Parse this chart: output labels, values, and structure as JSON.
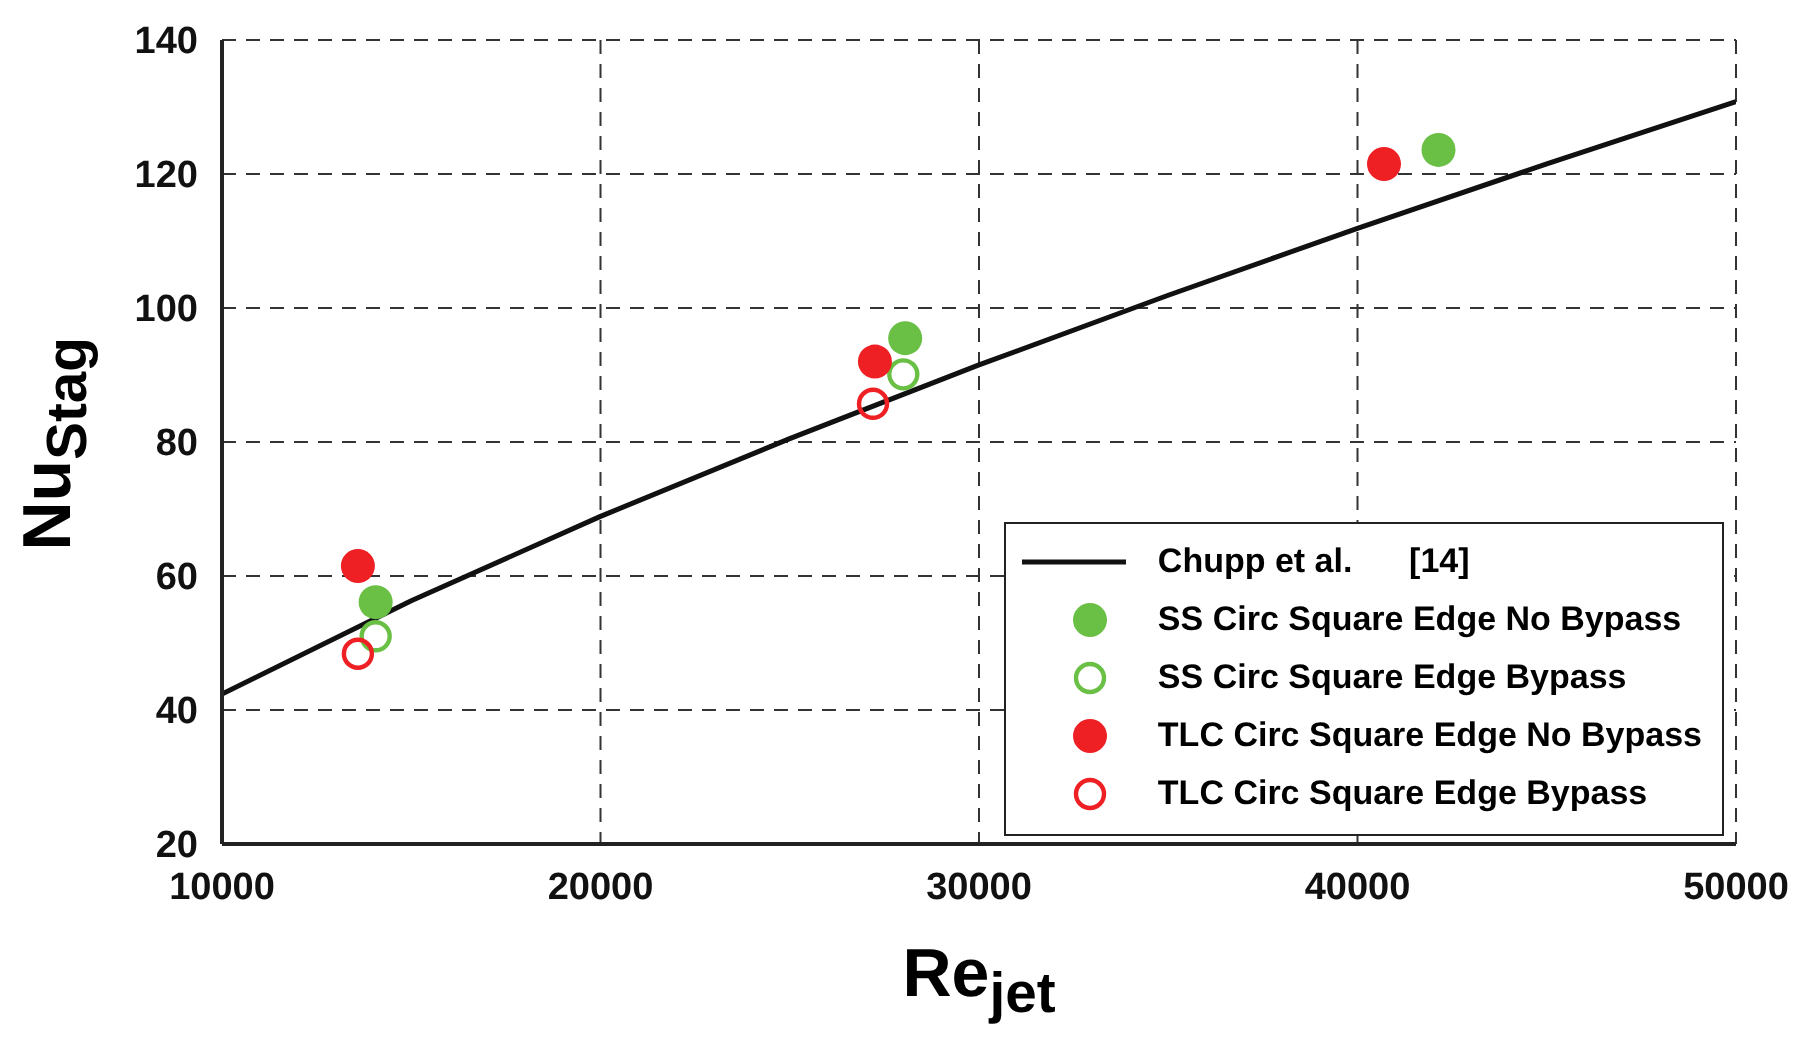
{
  "chart_data": {
    "type": "scatter",
    "xlabel": "Re$_{jet}$",
    "ylabel": "Nu$_{Stag}$",
    "xlim": [
      10000,
      50000
    ],
    "xticks": [
      10000,
      20000,
      30000,
      40000,
      50000
    ],
    "ylim": [
      20,
      140
    ],
    "yticks": [
      20,
      40,
      60,
      80,
      100,
      120,
      140
    ],
    "grid": true,
    "legend": "bottom right",
    "series": [
      {
        "name": "Chupp et al.      [14]",
        "type": "line",
        "color": "#111111",
        "marker": "none",
        "line_style": "solid",
        "x": [
          10000,
          15000,
          20000,
          25000,
          30000,
          35000,
          40000,
          45000,
          50000
        ],
        "values": [
          42.4,
          56.3,
          68.9,
          80.5,
          91.5,
          101.9,
          111.9,
          121.5,
          130.8
        ]
      },
      {
        "name": "SS Circ Square Edge No Bypass",
        "type": "scatter",
        "color": "#6abf45",
        "marker": "circle",
        "x": [
          14060,
          28050,
          42140
        ],
        "values": [
          56.1,
          95.5,
          123.6
        ]
      },
      {
        "name": "SS Circ Square Edge Bypass",
        "type": "scatter",
        "color": "#6abf45",
        "marker": "circle-open",
        "x": [
          14060,
          28000
        ],
        "values": [
          51,
          90.1
        ]
      },
      {
        "name": "TLC Circ Square Edge No Bypass",
        "type": "scatter",
        "color": "#ee2024",
        "marker": "circle",
        "x": [
          13590,
          27250,
          40700
        ],
        "values": [
          61.5,
          92,
          121.5
        ]
      },
      {
        "name": "TLC Circ Square Edge Bypass",
        "type": "scatter",
        "color": "#ee2024",
        "marker": "circle-open",
        "x": [
          13590,
          27200
        ],
        "values": [
          48.4,
          85.7
        ]
      }
    ]
  }
}
